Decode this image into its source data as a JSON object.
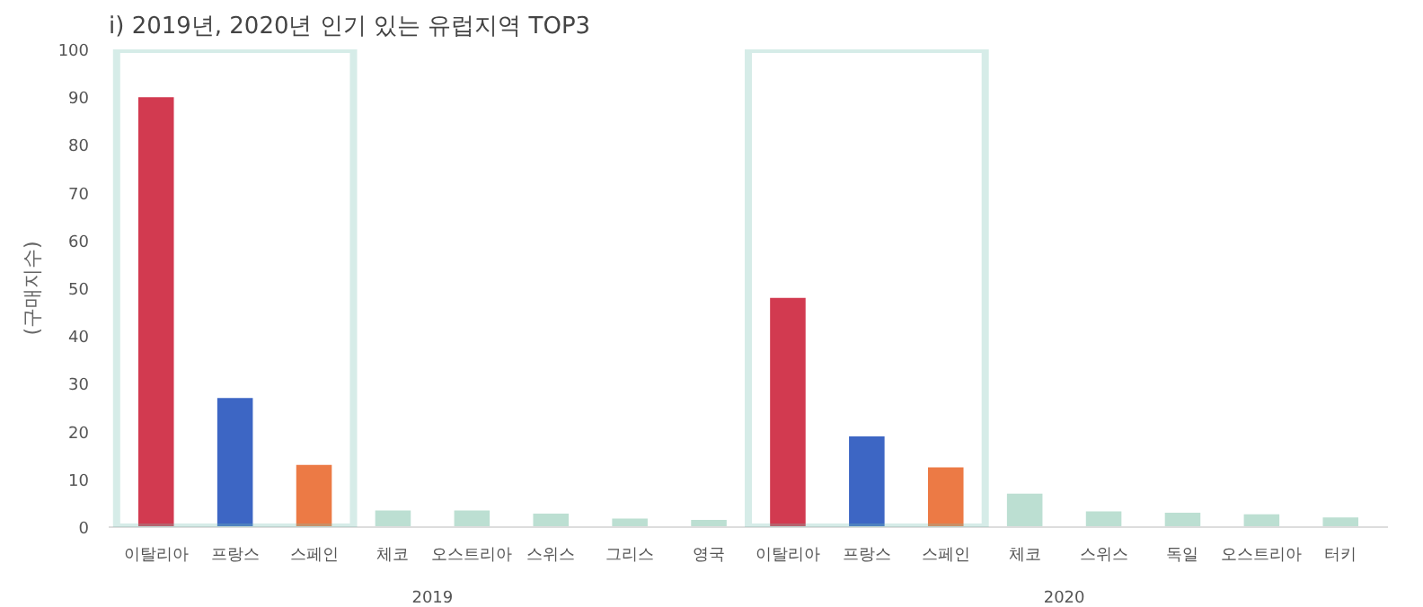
{
  "chart_data": {
    "type": "bar",
    "title": "i) 2019년, 2020년 인기 있는 유럽지역 TOP3",
    "ylabel": "(구매지수)",
    "categories": [
      "이탈리아",
      "프랑스",
      "스페인",
      "체코",
      "오스트리아",
      "스위스",
      "그리스",
      "영국",
      "이탈리아",
      "프랑스",
      "스페인",
      "체코",
      "스위스",
      "독일",
      "오스트리아",
      "터키"
    ],
    "values": [
      90,
      27,
      13,
      3.5,
      3.5,
      2.8,
      1.8,
      1.5,
      48,
      19,
      12.5,
      7,
      3.3,
      3,
      2.7,
      2
    ],
    "colors": [
      "#d23a50",
      "#3d66c4",
      "#ec7a45",
      "#bcdfd2",
      "#bcdfd2",
      "#bcdfd2",
      "#bcdfd2",
      "#bcdfd2",
      "#d23a50",
      "#3d66c4",
      "#ec7a45",
      "#bcdfd2",
      "#bcdfd2",
      "#bcdfd2",
      "#bcdfd2",
      "#bcdfd2"
    ],
    "ylim": [
      0,
      100
    ],
    "yticks": [
      0,
      10,
      20,
      30,
      40,
      50,
      60,
      70,
      80,
      90,
      100
    ],
    "grid": false,
    "annotations": [
      "2019",
      "2020"
    ]
  }
}
